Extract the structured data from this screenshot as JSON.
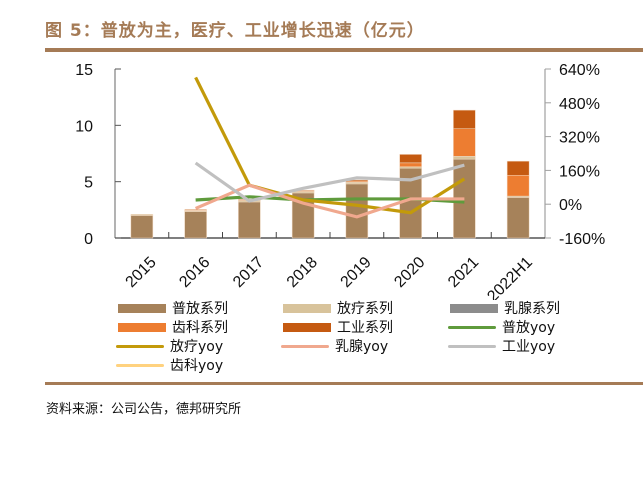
{
  "header": {
    "title": "图 5：普放为主，医疗、工业增长迅速（亿元）"
  },
  "footer": {
    "source": "资料来源：公司公告，德邦研究所"
  },
  "chart_data": {
    "type": "bar",
    "stacked": true,
    "title": "普放为主，医疗、工业增长迅速（亿元）",
    "xlabel": "",
    "ylabel": "",
    "categories": [
      "2015",
      "2016",
      "2017",
      "2018",
      "2019",
      "2020",
      "2021",
      "2022H1"
    ],
    "y_left": {
      "ylim": [
        0,
        15
      ],
      "ticks": [
        "0",
        "5",
        "10",
        "15"
      ],
      "tick_values": [
        0,
        5,
        10,
        15
      ]
    },
    "y_right": {
      "ylim": [
        -160,
        640
      ],
      "ticks": [
        "-160%",
        "0%",
        "160%",
        "320%",
        "480%",
        "640%"
      ],
      "tick_values": [
        -160,
        0,
        160,
        320,
        480,
        640
      ]
    },
    "bar_series": [
      {
        "name": "普放系列",
        "color": "#a6825a",
        "values": [
          2.0,
          2.35,
          3.2,
          4.0,
          4.8,
          6.2,
          7.0,
          3.6
        ]
      },
      {
        "name": "放疗系列",
        "color": "#d8c39b",
        "values": [
          0.1,
          0.1,
          0.15,
          0.15,
          0.15,
          0.12,
          0.25,
          0.12
        ]
      },
      {
        "name": "乳腺系列",
        "color": "#8c8c8c",
        "values": [
          0,
          0,
          0,
          0,
          0,
          0,
          0,
          0
        ]
      },
      {
        "name": "齿科系列",
        "color": "#ed7d31",
        "values": [
          0,
          0.03,
          0.05,
          0.05,
          0.1,
          0.35,
          2.45,
          1.85
        ]
      },
      {
        "name": "工业系列",
        "color": "#c55a11",
        "values": [
          0,
          0.05,
          0.05,
          0.05,
          0.1,
          0.75,
          1.65,
          1.25
        ]
      }
    ],
    "line_series": [
      {
        "name": "普放yoy",
        "color": "#5f9b3c",
        "axis": "right",
        "values": [
          null,
          20,
          35,
          20,
          25,
          25,
          10,
          null
        ]
      },
      {
        "name": "放疗yoy",
        "color": "#c39a0a",
        "axis": "right",
        "values": [
          null,
          600,
          90,
          20,
          -5,
          -40,
          120,
          null
        ]
      },
      {
        "name": "乳腺yoy",
        "color": "#f0a88e",
        "axis": "right",
        "values": [
          null,
          -20,
          90,
          5,
          -60,
          25,
          25,
          null
        ]
      },
      {
        "name": "工业yoy",
        "color": "#c0c0c0",
        "axis": "right",
        "values": [
          null,
          195,
          15,
          75,
          125,
          115,
          185,
          null
        ]
      },
      {
        "name": "齿科yoy",
        "color": "#ffd27f",
        "axis": "right",
        "values": [
          null,
          null,
          null,
          null,
          null,
          null,
          null,
          null
        ]
      }
    ],
    "legend": {
      "placement": "bottom",
      "items": [
        {
          "label": "普放系列",
          "kind": "bar",
          "color": "#a6825a"
        },
        {
          "label": "放疗系列",
          "kind": "bar",
          "color": "#d8c39b"
        },
        {
          "label": "乳腺系列",
          "kind": "bar",
          "color": "#8c8c8c"
        },
        {
          "label": "齿科系列",
          "kind": "bar",
          "color": "#ed7d31"
        },
        {
          "label": "工业系列",
          "kind": "bar",
          "color": "#c55a11"
        },
        {
          "label": "普放yoy",
          "kind": "line",
          "color": "#5f9b3c"
        },
        {
          "label": "放疗yoy",
          "kind": "line",
          "color": "#c39a0a"
        },
        {
          "label": "乳腺yoy",
          "kind": "line",
          "color": "#f0a88e"
        },
        {
          "label": "工业yoy",
          "kind": "line",
          "color": "#c0c0c0"
        },
        {
          "label": "齿科yoy",
          "kind": "line",
          "color": "#ffd27f"
        }
      ]
    },
    "grid": false
  }
}
